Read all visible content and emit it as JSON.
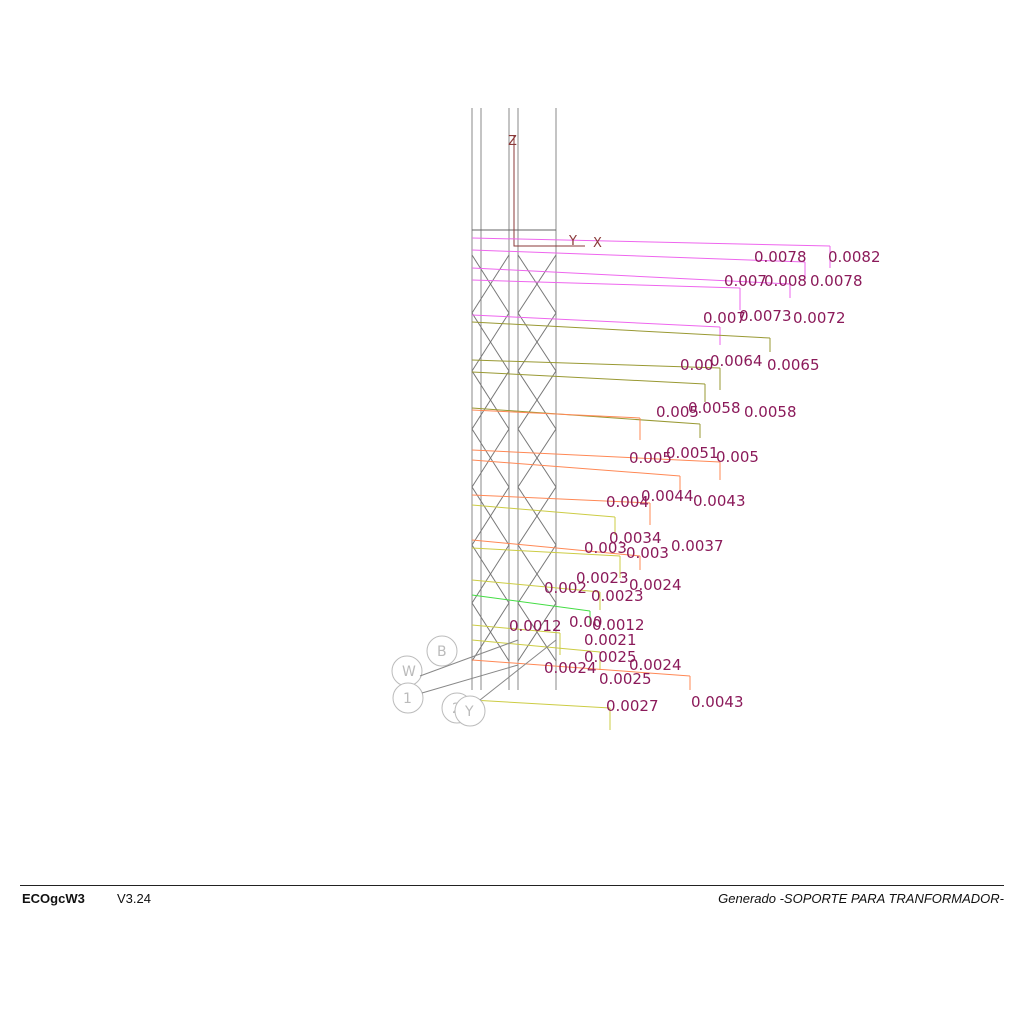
{
  "footer": {
    "app_name": "ECOgcW3",
    "version": "V3.24",
    "generated": "Generado -SOPORTE PARA TRANFORMADOR-"
  },
  "axes": {
    "z": "Z",
    "y": "Y",
    "x": "X"
  },
  "grid_markers": [
    "W",
    "B",
    "1",
    "2",
    "Y"
  ],
  "colors": {
    "label": "#8b1a5a",
    "top": "#ee66ee",
    "mid": "#999933",
    "lower": "#ff8855",
    "low": "#cccc44",
    "green": "#44dd44",
    "frame": "#777777"
  },
  "labels": [
    "0.0078",
    "0.0082",
    "0.007",
    "0.008",
    "0.0078",
    "0.007",
    "0.0073",
    "0.0072",
    "0.00",
    "0.0064",
    "0.0065",
    "0.005",
    "0.0058",
    "0.0058",
    "0.005",
    "0.0051",
    "0.005",
    "0.004",
    "0.0044",
    "0.0043",
    "0.0034",
    "0.003",
    "0.003",
    "0.0037",
    "0.0023",
    "0.002",
    "0.0023",
    "0.0024",
    "0.0012",
    "0.00",
    "0.0012",
    "0.0021",
    "0.0025",
    "0.0024",
    "0.0024",
    "0.0025",
    "0.0027",
    "0.0043"
  ]
}
